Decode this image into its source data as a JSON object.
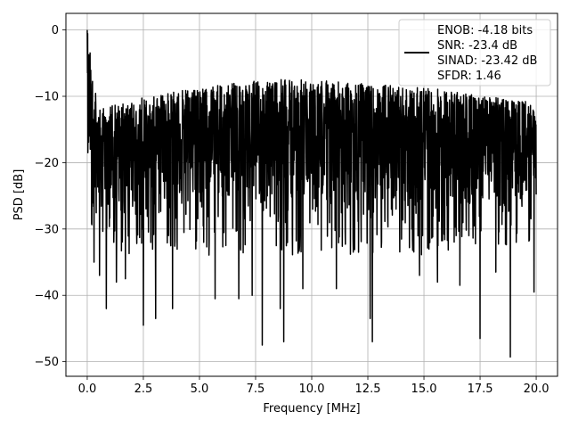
{
  "chart_data": {
    "type": "line",
    "title": "",
    "xlabel": "Frequency [MHz]",
    "ylabel": "PSD [dB]",
    "xlim": [
      -0.95,
      20.95
    ],
    "ylim": [
      -52.2,
      2.5
    ],
    "xticks": [
      0.0,
      2.5,
      5.0,
      7.5,
      10.0,
      12.5,
      15.0,
      17.5,
      20.0
    ],
    "xtick_labels": [
      "0.0",
      "2.5",
      "5.0",
      "7.5",
      "10.0",
      "12.5",
      "15.0",
      "17.5",
      "20.0"
    ],
    "yticks": [
      0,
      -10,
      -20,
      -30,
      -40,
      -50
    ],
    "ytick_labels": [
      "0",
      "−10",
      "−20",
      "−30",
      "−40",
      "−50"
    ],
    "grid": true,
    "legend_position": "top-right",
    "series": [
      {
        "name": "ENOB: -4.18 bits\nSNR: -23.4 dB\nSINAD: -23.42 dB\nSFDR: 1.46",
        "color": "#000000",
        "style": "noise-spectrum",
        "x_range": [
          0.0,
          20.0
        ],
        "samples": 2048,
        "peak": {
          "x": 0.0,
          "y": 0.0
        },
        "envelope_upper": [
          [
            0.0,
            0.0
          ],
          [
            0.5,
            -12.0
          ],
          [
            1.5,
            -11.0
          ],
          [
            2.5,
            -10.0
          ],
          [
            4.5,
            -9.0
          ],
          [
            6.5,
            -8.0
          ],
          [
            8.0,
            -7.5
          ],
          [
            10.0,
            -7.5
          ],
          [
            12.0,
            -8.0
          ],
          [
            14.0,
            -8.5
          ],
          [
            16.0,
            -9.0
          ],
          [
            18.0,
            -10.0
          ],
          [
            20.0,
            -11.0
          ]
        ],
        "envelope_lower": [
          [
            0.0,
            -28.0
          ],
          [
            2.0,
            -30.0
          ],
          [
            5.0,
            -30.0
          ],
          [
            10.0,
            -30.0
          ],
          [
            15.0,
            -30.0
          ],
          [
            20.0,
            -28.0
          ]
        ],
        "notches": [
          {
            "x": 0.3,
            "y": -35.0
          },
          {
            "x": 0.55,
            "y": -37.0
          },
          {
            "x": 0.85,
            "y": -42.0
          },
          {
            "x": 1.3,
            "y": -38.0
          },
          {
            "x": 1.7,
            "y": -37.5
          },
          {
            "x": 2.5,
            "y": -44.5
          },
          {
            "x": 3.05,
            "y": -43.5
          },
          {
            "x": 3.8,
            "y": -42.0
          },
          {
            "x": 5.7,
            "y": -40.5
          },
          {
            "x": 6.75,
            "y": -40.5
          },
          {
            "x": 7.35,
            "y": -40.0
          },
          {
            "x": 7.8,
            "y": -47.5
          },
          {
            "x": 8.6,
            "y": -42.0
          },
          {
            "x": 8.75,
            "y": -47.0
          },
          {
            "x": 9.6,
            "y": -39.0
          },
          {
            "x": 11.1,
            "y": -39.0
          },
          {
            "x": 12.6,
            "y": -43.5
          },
          {
            "x": 12.7,
            "y": -47.0
          },
          {
            "x": 14.8,
            "y": -37.0
          },
          {
            "x": 15.6,
            "y": -38.0
          },
          {
            "x": 16.6,
            "y": -38.5
          },
          {
            "x": 17.5,
            "y": -46.5
          },
          {
            "x": 18.2,
            "y": -36.5
          },
          {
            "x": 18.85,
            "y": -49.3
          },
          {
            "x": 19.9,
            "y": -39.5
          }
        ]
      }
    ]
  }
}
